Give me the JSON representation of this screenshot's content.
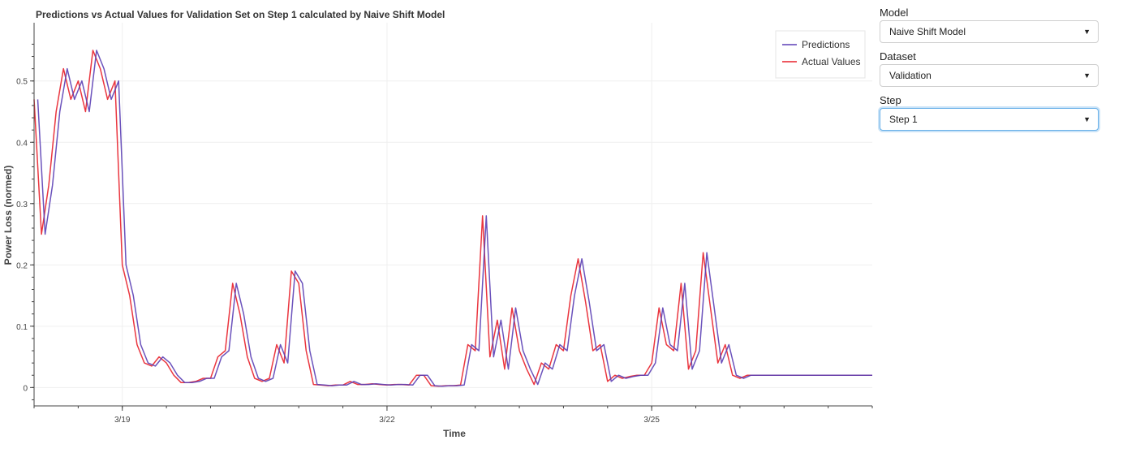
{
  "controls": {
    "model": {
      "label": "Model",
      "value": "Naive Shift Model"
    },
    "dataset": {
      "label": "Dataset",
      "value": "Validation"
    },
    "step": {
      "label": "Step",
      "value": "Step 1"
    },
    "caret_icon": "triangle-down-icon",
    "focus_color": "#66afe9"
  },
  "chart_data": {
    "type": "line",
    "title": "Predictions vs Actual Values for Validation Set on Step 1 calculated by Naive Shift Model",
    "xlabel": "Time",
    "ylabel": "Power Loss (normed)",
    "x_type": "date",
    "xlim": [
      "2024-03-18T00:00",
      "2024-03-27T12:00"
    ],
    "ylim": [
      -0.03,
      0.595
    ],
    "xticks": [
      {
        "value": "2024-03-19T00:00",
        "label": "3/19"
      },
      {
        "value": "2024-03-22T00:00",
        "label": "3/22"
      },
      {
        "value": "2024-03-25T00:00",
        "label": "3/25"
      }
    ],
    "yticks": [
      0,
      0.1,
      0.2,
      0.3,
      0.4,
      0.5
    ],
    "grid": true,
    "legend": "top-right",
    "series": [
      {
        "name": "Predictions",
        "color": "#5b3fb5",
        "lag_hours": 1
      },
      {
        "name": "Actual Values",
        "color": "#e8202a",
        "lag_hours": 0
      }
    ],
    "x": [
      "2024-03-18T00:00",
      "2024-03-18T02:00",
      "2024-03-18T04:00",
      "2024-03-18T06:00",
      "2024-03-18T08:00",
      "2024-03-18T10:00",
      "2024-03-18T12:00",
      "2024-03-18T14:00",
      "2024-03-18T16:00",
      "2024-03-18T18:00",
      "2024-03-18T20:00",
      "2024-03-18T22:00",
      "2024-03-19T00:00",
      "2024-03-19T02:00",
      "2024-03-19T04:00",
      "2024-03-19T06:00",
      "2024-03-19T08:00",
      "2024-03-19T10:00",
      "2024-03-19T12:00",
      "2024-03-19T14:00",
      "2024-03-19T16:00",
      "2024-03-19T18:00",
      "2024-03-19T20:00",
      "2024-03-19T22:00",
      "2024-03-20T00:00",
      "2024-03-20T02:00",
      "2024-03-20T04:00",
      "2024-03-20T06:00",
      "2024-03-20T08:00",
      "2024-03-20T10:00",
      "2024-03-20T12:00",
      "2024-03-20T14:00",
      "2024-03-20T16:00",
      "2024-03-20T18:00",
      "2024-03-20T20:00",
      "2024-03-20T22:00",
      "2024-03-21T00:00",
      "2024-03-21T02:00",
      "2024-03-21T04:00",
      "2024-03-21T06:00",
      "2024-03-21T08:00",
      "2024-03-21T10:00",
      "2024-03-21T12:00",
      "2024-03-21T14:00",
      "2024-03-21T16:00",
      "2024-03-21T18:00",
      "2024-03-21T20:00",
      "2024-03-21T22:00",
      "2024-03-22T00:00",
      "2024-03-22T02:00",
      "2024-03-22T04:00",
      "2024-03-22T06:00",
      "2024-03-22T08:00",
      "2024-03-22T10:00",
      "2024-03-22T12:00",
      "2024-03-22T14:00",
      "2024-03-22T16:00",
      "2024-03-22T18:00",
      "2024-03-22T20:00",
      "2024-03-22T22:00",
      "2024-03-23T00:00",
      "2024-03-23T02:00",
      "2024-03-23T04:00",
      "2024-03-23T06:00",
      "2024-03-23T08:00",
      "2024-03-23T10:00",
      "2024-03-23T12:00",
      "2024-03-23T14:00",
      "2024-03-23T16:00",
      "2024-03-23T18:00",
      "2024-03-23T20:00",
      "2024-03-23T22:00",
      "2024-03-24T00:00",
      "2024-03-24T02:00",
      "2024-03-24T04:00",
      "2024-03-24T06:00",
      "2024-03-24T08:00",
      "2024-03-24T10:00",
      "2024-03-24T12:00",
      "2024-03-24T14:00",
      "2024-03-24T16:00",
      "2024-03-24T18:00",
      "2024-03-24T20:00",
      "2024-03-24T22:00",
      "2024-03-25T00:00",
      "2024-03-25T02:00",
      "2024-03-25T04:00",
      "2024-03-25T06:00",
      "2024-03-25T08:00",
      "2024-03-25T10:00",
      "2024-03-25T12:00",
      "2024-03-25T14:00",
      "2024-03-25T16:00",
      "2024-03-25T18:00",
      "2024-03-25T20:00",
      "2024-03-25T22:00",
      "2024-03-26T00:00",
      "2024-03-26T02:00",
      "2024-03-26T04:00",
      "2024-03-26T06:00",
      "2024-03-26T08:00",
      "2024-03-26T10:00",
      "2024-03-26T12:00",
      "2024-03-26T14:00",
      "2024-03-26T16:00",
      "2024-03-26T18:00",
      "2024-03-26T20:00",
      "2024-03-26T22:00",
      "2024-03-27T00:00",
      "2024-03-27T02:00",
      "2024-03-27T04:00",
      "2024-03-27T06:00",
      "2024-03-27T08:00",
      "2024-03-27T10:00",
      "2024-03-27T12:00"
    ],
    "values": [
      0.47,
      0.25,
      0.33,
      0.45,
      0.52,
      0.47,
      0.5,
      0.45,
      0.55,
      0.52,
      0.47,
      0.5,
      0.2,
      0.15,
      0.07,
      0.04,
      0.035,
      0.05,
      0.04,
      0.02,
      0.008,
      0.008,
      0.01,
      0.015,
      0.015,
      0.05,
      0.06,
      0.17,
      0.12,
      0.05,
      0.015,
      0.01,
      0.015,
      0.07,
      0.04,
      0.19,
      0.17,
      0.06,
      0.005,
      0.004,
      0.003,
      0.004,
      0.004,
      0.01,
      0.005,
      0.005,
      0.006,
      0.005,
      0.004,
      0.005,
      0.005,
      0.004,
      0.02,
      0.02,
      0.003,
      0.002,
      0.003,
      0.003,
      0.004,
      0.07,
      0.06,
      0.28,
      0.05,
      0.11,
      0.03,
      0.13,
      0.06,
      0.03,
      0.005,
      0.04,
      0.03,
      0.07,
      0.06,
      0.15,
      0.21,
      0.14,
      0.06,
      0.07,
      0.01,
      0.02,
      0.015,
      0.018,
      0.02,
      0.02,
      0.04,
      0.13,
      0.07,
      0.06,
      0.17,
      0.03,
      0.06,
      0.22,
      0.13,
      0.04,
      0.07,
      0.02,
      0.015,
      0.02,
      0.02,
      0.02,
      0.02,
      0.02,
      0.02,
      0.02,
      0.02,
      0.02,
      0.02,
      0.02,
      0.02,
      0.02,
      0.02,
      0.02,
      0.02,
      0.02,
      0.02
    ]
  }
}
